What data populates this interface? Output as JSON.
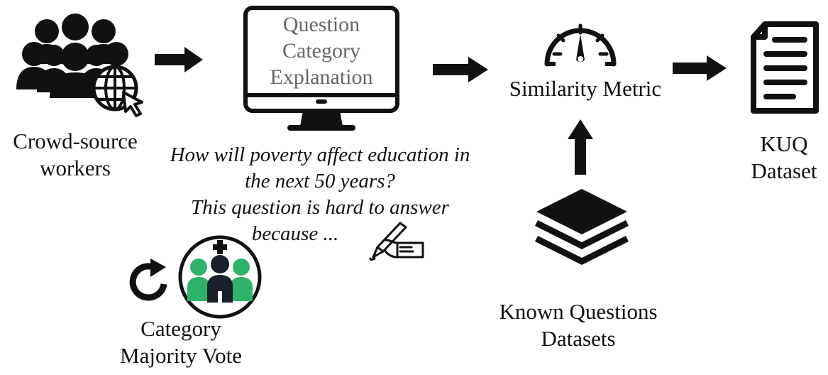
{
  "nodes": {
    "crowd": {
      "label_line1": "Crowd-source",
      "label_line2": "workers"
    },
    "monitor": {
      "line1": "Question",
      "line2": "Category",
      "line3": "Explanation"
    },
    "similarity": {
      "label": "Similarity Metric"
    },
    "kuq": {
      "label_line1": "KUQ",
      "label_line2": "Dataset"
    },
    "known": {
      "label_line1": "Known Questions",
      "label_line2": "Datasets"
    },
    "vote": {
      "label_line1": "Category",
      "label_line2": "Majority Vote"
    }
  },
  "question": {
    "line1": "How will poverty affect education in",
    "line2": "the next 50 years?",
    "line3": "This question is hard to answer",
    "line4": "because ..."
  },
  "colors": {
    "ink": "#111111",
    "screen_text": "#666666",
    "vote_green": "#2db36b",
    "vote_dark": "#1a1f2b",
    "vote_ring": "#111111"
  },
  "icons": [
    "people-group-icon",
    "globe-cursor-icon",
    "monitor-icon",
    "speedometer-icon",
    "document-icon",
    "layers-icon",
    "refresh-icon",
    "majority-vote-icon",
    "writing-hand-icon",
    "arrow-right-icon",
    "arrow-up-icon"
  ]
}
